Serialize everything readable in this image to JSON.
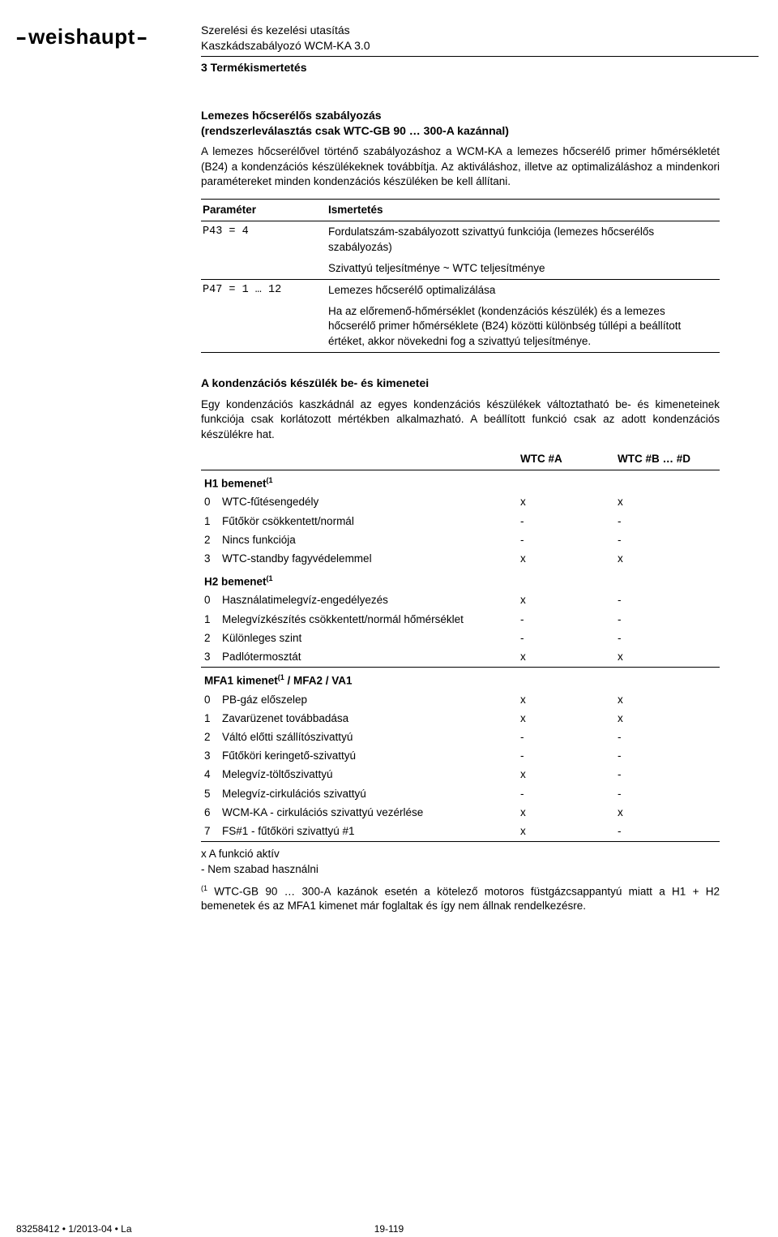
{
  "header": {
    "brand": "weishaupt",
    "line1": "Szerelési és kezelési utasítás",
    "line2": "Kaszkádszabályozó WCM-KA 3.0",
    "section": "3 Termékismertetés"
  },
  "intro": {
    "title_l1": "Lemezes hőcserélős szabályozás",
    "title_l2": "(rendszerleválasztás csak WTC-GB 90 … 300-A kazánnal)",
    "para": "A lemezes hőcserélővel történő szabályozáshoz a WCM-KA a lemezes hőcserélő primer hőmérsékletét (B24) a kondenzációs készülékeknek továbbítja. Az aktiváláshoz, illetve az optimalizáláshoz a mindenkori paramétereket minden kondenzációs készüléken be kell állítani."
  },
  "param_table": {
    "h_param": "Paraméter",
    "h_desc": "Ismertetés",
    "rows": [
      {
        "p": "P43 = 4",
        "d": "Fordulatszám-szabályozott szivattyú funkciója (lemezes hőcserélős szabályozás)"
      },
      {
        "p": "",
        "d": "Szivattyú teljesítménye ~ WTC teljesítménye"
      },
      {
        "p": "P47 = 1 … 12",
        "d": "Lemezes hőcserélő optimalizálása"
      },
      {
        "p": "",
        "d": "Ha az előremenő-hőmérséklet (kondenzációs készülék) és a lemezes hőcserélő primer hőmérséklete (B24) közötti különbség túllépi a beállított értéket, akkor növekedni fog a szivattyú teljesítménye."
      }
    ]
  },
  "io": {
    "title": "A kondenzációs készülék be- és kimenetei",
    "para": "Egy kondenzációs kaszkádnál az egyes kondenzációs készülékek változtatható be- és kimeneteinek funkciója csak korlátozott mértékben alkalmazható. A beállított funkció csak az adott kondenzációs készülékre hat.",
    "col_a": "WTC #A",
    "col_b": "WTC #B … #D",
    "groups": [
      {
        "name": "H1 bemenet",
        "sup": "(1",
        "rows": [
          {
            "n": "0",
            "d": "WTC-fűtésengedély",
            "a": "x",
            "b": "x"
          },
          {
            "n": "1",
            "d": "Fűtőkör csökkentett/normál",
            "a": "-",
            "b": "-"
          },
          {
            "n": "2",
            "d": "Nincs funkciója",
            "a": "-",
            "b": "-"
          },
          {
            "n": "3",
            "d": "WTC-standby fagyvédelemmel",
            "a": "x",
            "b": "x"
          }
        ]
      },
      {
        "name": "H2 bemenet",
        "sup": "(1",
        "rows": [
          {
            "n": "0",
            "d": "Használatimelegvíz-engedélyezés",
            "a": "x",
            "b": "-"
          },
          {
            "n": "1",
            "d": "Melegvízkészítés csökkentett/normál hőmérséklet",
            "a": "-",
            "b": "-"
          },
          {
            "n": "2",
            "d": "Különleges szint",
            "a": "-",
            "b": "-"
          },
          {
            "n": "3",
            "d": "Padlótermosztát",
            "a": "x",
            "b": "x"
          }
        ]
      },
      {
        "name": "MFA1 kimenet",
        "sup": "(1",
        "suffix": " / MFA2 / VA1",
        "toprule": true,
        "rows": [
          {
            "n": "0",
            "d": "PB-gáz előszelep",
            "a": "x",
            "b": "x"
          },
          {
            "n": "1",
            "d": "Zavarüzenet továbbadása",
            "a": "x",
            "b": "x"
          },
          {
            "n": "2",
            "d": "Váltó előtti szállítószivattyú",
            "a": "-",
            "b": "-"
          },
          {
            "n": "3",
            "d": "Fűtőköri keringető-szivattyú",
            "a": "-",
            "b": "-"
          },
          {
            "n": "4",
            "d": "Melegvíz-töltőszivattyú",
            "a": "x",
            "b": "-"
          },
          {
            "n": "5",
            "d": "Melegvíz-cirkulációs szivattyú",
            "a": "-",
            "b": "-"
          },
          {
            "n": "6",
            "d": "WCM-KA - cirkulációs szivattyú vezérlése",
            "a": "x",
            "b": "x"
          },
          {
            "n": "7",
            "d": "FS#1 - fűtőköri szivattyú #1",
            "a": "x",
            "b": "-"
          }
        ]
      }
    ],
    "legend1": "x A funkció aktív",
    "legend2": "- Nem szabad használni",
    "footnote_sup": "(1",
    "footnote": " WTC-GB 90 … 300-A kazánok esetén a kötelező motoros füstgázcsappantyú miatt a H1 + H2 bemenetek és az MFA1 kimenet már foglaltak és így nem állnak rendelkezésre."
  },
  "footer": {
    "left": "83258412 • 1/2013-04 • La",
    "center": "19-119"
  }
}
